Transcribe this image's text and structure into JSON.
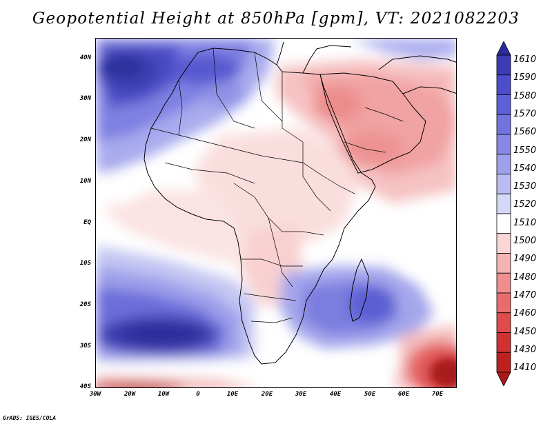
{
  "title": "Geopotential Height at 850hPa [gpm], VT: 2021082203",
  "credit": "GrADS: IGES/COLA",
  "lat_labels": [
    "40N",
    "30N",
    "20N",
    "10N",
    "EQ",
    "10S",
    "20S",
    "30S",
    "40S"
  ],
  "lon_labels": [
    "30W",
    "20W",
    "10W",
    "0",
    "10E",
    "20E",
    "30E",
    "40E",
    "50E",
    "60E",
    "70E"
  ],
  "colorbar": {
    "levels": [
      "1610",
      "1590",
      "1580",
      "1570",
      "1560",
      "1550",
      "1540",
      "1530",
      "1520",
      "1510",
      "1500",
      "1490",
      "1480",
      "1470",
      "1460",
      "1450",
      "1430",
      "1410"
    ],
    "colors": [
      "#2b2c99",
      "#3a3bb5",
      "#4c4dcb",
      "#5e60d8",
      "#7274de",
      "#8789e4",
      "#9fa1ea",
      "#babcf1",
      "#d6d8f8",
      "#ffffff",
      "#fbd6d6",
      "#f6b3b3",
      "#f08e8e",
      "#e96b6b",
      "#e04b4b",
      "#d13131",
      "#bf1f1f",
      "#a81a1a"
    ]
  },
  "colors": {
    "high": "#2f2f9f",
    "mid_high": "#8f91e6",
    "neutral": "#ffffff",
    "mid_low": "#f4b0b0",
    "low": "#b51e1e"
  },
  "icons": [
    "colorbar-up-arrow",
    "colorbar-down-arrow",
    "africa-coastline"
  ]
}
